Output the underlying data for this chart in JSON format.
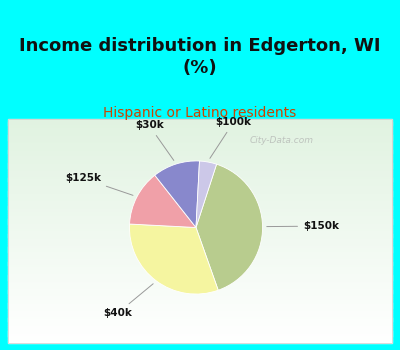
{
  "title": "Income distribution in Edgerton, WI\n(%)",
  "subtitle": "Hispanic or Latino residents",
  "labels": [
    "$150k",
    "$40k",
    "$125k",
    "$30k",
    "$100k"
  ],
  "sizes": [
    38,
    30,
    13,
    11,
    4
  ],
  "colors": [
    "#b8cc8e",
    "#f5f5a0",
    "#f0a0a8",
    "#8888cc",
    "#ccc8e8"
  ],
  "bg_cyan": "#00ffff",
  "bg_chart_top": "#d0e8d8",
  "bg_chart_bottom": "#f0f8f0",
  "title_fontsize": 13,
  "subtitle_fontsize": 10,
  "subtitle_color": "#cc4400",
  "start_angle": 72,
  "watermark": "City-Data.com"
}
